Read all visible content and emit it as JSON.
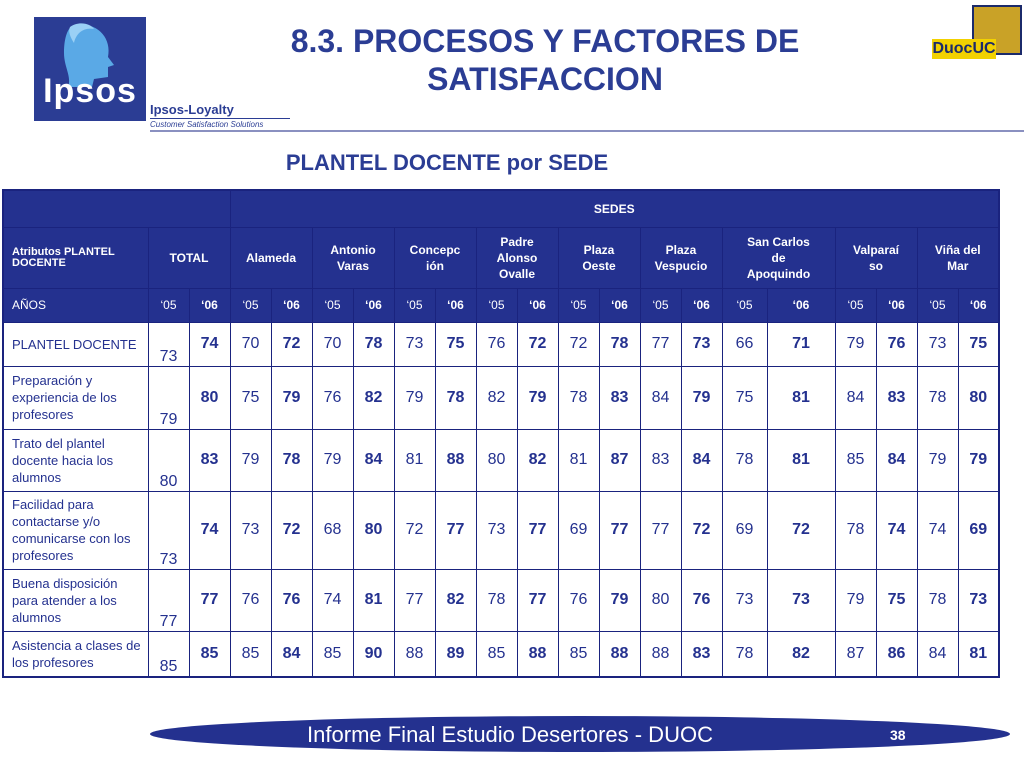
{
  "logo": {
    "word": "Ipsos",
    "brand": "Ipsos-Loyalty",
    "tagline": "Customer Satisfaction Solutions"
  },
  "title": {
    "line1": "8.3. PROCESOS Y FACTORES DE",
    "line2": "SATISFACCION"
  },
  "right_logo": {
    "word": "DuocUC"
  },
  "subtitle": "PLANTEL DOCENTE por SEDE",
  "table": {
    "sedes_label": "SEDES",
    "attr_header": "Atributos PLANTEL DOCENTE",
    "total_label": "TOTAL",
    "sedes": [
      "Alameda",
      "Antonio Varas",
      "Concepción",
      "Padre Alonso Ovalle",
      "Plaza Oeste",
      "Plaza Vespucio",
      "San Carlos de Apoquindo",
      "Valparaíso",
      "Viña del Mar"
    ],
    "sede_lines": [
      [
        "Alameda"
      ],
      [
        "Antonio",
        "Varas"
      ],
      [
        "Concepc",
        "ión"
      ],
      [
        "Padre",
        "Alonso",
        "Ovalle"
      ],
      [
        "Plaza",
        "Oeste"
      ],
      [
        "Plaza",
        "Vespucio"
      ],
      [
        "San Carlos",
        "de",
        "Apoquindo"
      ],
      [
        "Valparaí",
        "so"
      ],
      [
        "Viña del",
        "Mar"
      ]
    ],
    "anos_label": "AÑOS",
    "year_05": "‘05",
    "year_06": "‘06",
    "rows": [
      {
        "label": "PLANTEL DOCENTE",
        "values": [
          "73",
          "74",
          "70",
          "72",
          "70",
          "78",
          "73",
          "75",
          "76",
          "72",
          "72",
          "78",
          "77",
          "73",
          "66",
          "71",
          "79",
          "76",
          "73",
          "75"
        ]
      },
      {
        "label": "Preparación y experiencia de los profesores",
        "values": [
          "79",
          "80",
          "75",
          "79",
          "76",
          "82",
          "79",
          "78",
          "82",
          "79",
          "78",
          "83",
          "84",
          "79",
          "75",
          "81",
          "84",
          "83",
          "78",
          "80"
        ]
      },
      {
        "label": "Trato del plantel docente hacia los alumnos",
        "values": [
          "80",
          "83",
          "79",
          "78",
          "79",
          "84",
          "81",
          "88",
          "80",
          "82",
          "81",
          "87",
          "83",
          "84",
          "78",
          "81",
          "85",
          "84",
          "79",
          "79"
        ]
      },
      {
        "label": "Facilidad para contactarse y/o comunicarse con los profesores",
        "values": [
          "73",
          "74",
          "73",
          "72",
          "68",
          "80",
          "72",
          "77",
          "73",
          "77",
          "69",
          "77",
          "77",
          "72",
          "69",
          "72",
          "78",
          "74",
          "74",
          "69"
        ]
      },
      {
        "label": "Buena disposición para atender a los alumnos",
        "values": [
          "77",
          "77",
          "76",
          "76",
          "74",
          "81",
          "77",
          "82",
          "78",
          "77",
          "76",
          "79",
          "80",
          "76",
          "73",
          "73",
          "79",
          "75",
          "78",
          "73"
        ]
      },
      {
        "label": "Asistencia a clases de los profesores",
        "values": [
          "85",
          "85",
          "85",
          "84",
          "85",
          "90",
          "88",
          "89",
          "85",
          "88",
          "85",
          "88",
          "88",
          "83",
          "78",
          "82",
          "87",
          "86",
          "84",
          "81"
        ]
      }
    ]
  },
  "footer": {
    "text": "Informe Final Estudio Desertores - DUOC",
    "page": "38"
  }
}
